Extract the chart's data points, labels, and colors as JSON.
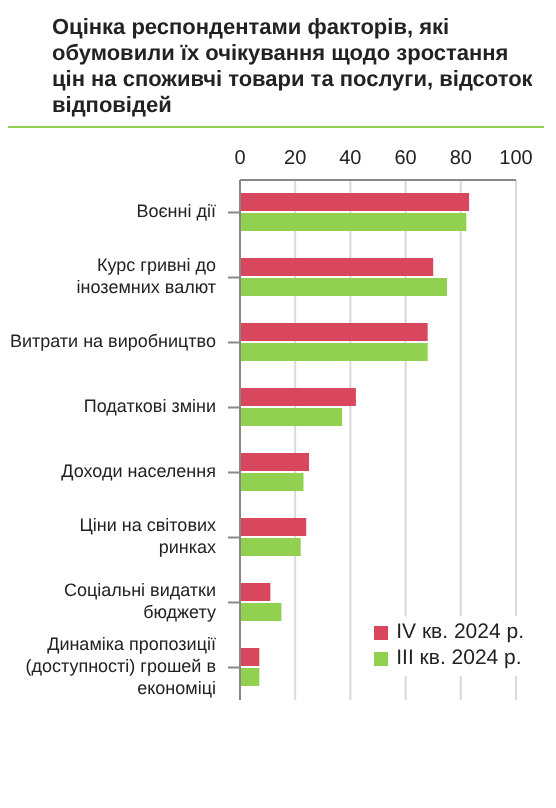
{
  "chart_data": {
    "type": "bar",
    "orientation": "horizontal",
    "title": "Оцінка респондентами факторів, які обумовили їх очікування щодо зростання  цін на споживчі товари та послуги, відсоток відповідей",
    "categories": [
      "Воєнні дії",
      "Курс гривні до іноземних валют",
      "Витрати на виробництво",
      "Податкові зміни",
      "Доходи населення",
      "Ціни на світових ринках",
      "Соціальні видатки бюджету",
      "Динаміка пропозиції (доступності) грошей в економіці"
    ],
    "series": [
      {
        "name": "IV кв. 2024 р.",
        "color": "#d9475f",
        "values": [
          83,
          70,
          68,
          42,
          25,
          24,
          11,
          7
        ]
      },
      {
        "name": "III кв. 2024 р.",
        "color": "#92d050",
        "values": [
          82,
          75,
          68,
          37,
          23,
          22,
          15,
          7
        ]
      }
    ],
    "xlim": [
      0,
      100
    ],
    "xticks": [
      0,
      20,
      40,
      60,
      80,
      100
    ],
    "grid": "x",
    "legend": "bottom right"
  }
}
